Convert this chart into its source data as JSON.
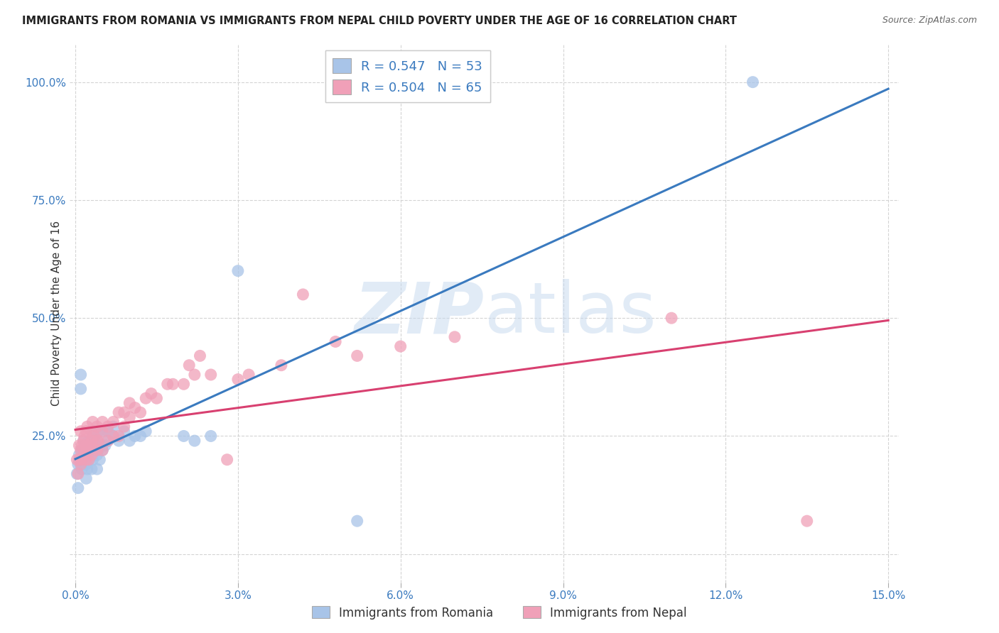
{
  "title": "IMMIGRANTS FROM ROMANIA VS IMMIGRANTS FROM NEPAL CHILD POVERTY UNDER THE AGE OF 16 CORRELATION CHART",
  "source": "Source: ZipAtlas.com",
  "xlabel_Romania": "Immigrants from Romania",
  "xlabel_Nepal": "Immigrants from Nepal",
  "ylabel": "Child Poverty Under the Age of 16",
  "R_romania": 0.547,
  "N_romania": 53,
  "R_nepal": 0.504,
  "N_nepal": 65,
  "xlim": [
    -0.001,
    0.152
  ],
  "ylim": [
    -0.06,
    1.08
  ],
  "xticks": [
    0.0,
    0.03,
    0.06,
    0.09,
    0.12,
    0.15
  ],
  "yticks": [
    0.0,
    0.25,
    0.5,
    0.75,
    1.0
  ],
  "color_romania": "#a8c4e8",
  "color_nepal": "#f0a0b8",
  "line_color_romania": "#3a7abf",
  "line_color_nepal": "#d84070",
  "watermark": "ZIPatlas",
  "romania_x": [
    0.0003,
    0.0005,
    0.0005,
    0.0007,
    0.001,
    0.001,
    0.001,
    0.0012,
    0.0012,
    0.0015,
    0.0015,
    0.0017,
    0.002,
    0.002,
    0.002,
    0.0022,
    0.0022,
    0.0025,
    0.0025,
    0.0028,
    0.003,
    0.003,
    0.003,
    0.0032,
    0.0032,
    0.0035,
    0.0035,
    0.004,
    0.004,
    0.004,
    0.0042,
    0.0042,
    0.0045,
    0.005,
    0.005,
    0.005,
    0.0055,
    0.006,
    0.006,
    0.007,
    0.007,
    0.008,
    0.009,
    0.01,
    0.011,
    0.012,
    0.013,
    0.02,
    0.022,
    0.025,
    0.03,
    0.052,
    0.125
  ],
  "romania_y": [
    0.17,
    0.14,
    0.19,
    0.21,
    0.35,
    0.38,
    0.19,
    0.18,
    0.22,
    0.2,
    0.24,
    0.2,
    0.19,
    0.22,
    0.16,
    0.18,
    0.23,
    0.24,
    0.2,
    0.23,
    0.18,
    0.22,
    0.26,
    0.26,
    0.2,
    0.24,
    0.22,
    0.21,
    0.24,
    0.18,
    0.22,
    0.26,
    0.2,
    0.23,
    0.26,
    0.22,
    0.23,
    0.24,
    0.26,
    0.25,
    0.27,
    0.24,
    0.26,
    0.24,
    0.25,
    0.25,
    0.26,
    0.25,
    0.24,
    0.25,
    0.6,
    0.07,
    1.0
  ],
  "nepal_x": [
    0.0003,
    0.0005,
    0.0007,
    0.0007,
    0.001,
    0.001,
    0.001,
    0.0012,
    0.0012,
    0.0015,
    0.0015,
    0.0017,
    0.002,
    0.002,
    0.002,
    0.0022,
    0.0022,
    0.0025,
    0.0025,
    0.003,
    0.003,
    0.003,
    0.003,
    0.0032,
    0.0035,
    0.004,
    0.004,
    0.004,
    0.0042,
    0.005,
    0.005,
    0.005,
    0.006,
    0.006,
    0.007,
    0.007,
    0.008,
    0.008,
    0.009,
    0.009,
    0.01,
    0.01,
    0.011,
    0.012,
    0.013,
    0.014,
    0.015,
    0.017,
    0.018,
    0.02,
    0.021,
    0.022,
    0.023,
    0.025,
    0.028,
    0.03,
    0.032,
    0.038,
    0.042,
    0.048,
    0.052,
    0.06,
    0.07,
    0.11,
    0.135
  ],
  "nepal_y": [
    0.2,
    0.17,
    0.23,
    0.2,
    0.26,
    0.22,
    0.19,
    0.23,
    0.2,
    0.24,
    0.21,
    0.25,
    0.23,
    0.2,
    0.26,
    0.22,
    0.27,
    0.23,
    0.2,
    0.24,
    0.21,
    0.26,
    0.23,
    0.28,
    0.25,
    0.24,
    0.22,
    0.27,
    0.24,
    0.26,
    0.22,
    0.28,
    0.24,
    0.27,
    0.25,
    0.28,
    0.25,
    0.3,
    0.27,
    0.3,
    0.29,
    0.32,
    0.31,
    0.3,
    0.33,
    0.34,
    0.33,
    0.36,
    0.36,
    0.36,
    0.4,
    0.38,
    0.42,
    0.38,
    0.2,
    0.37,
    0.38,
    0.4,
    0.55,
    0.45,
    0.42,
    0.44,
    0.46,
    0.5,
    0.07
  ]
}
